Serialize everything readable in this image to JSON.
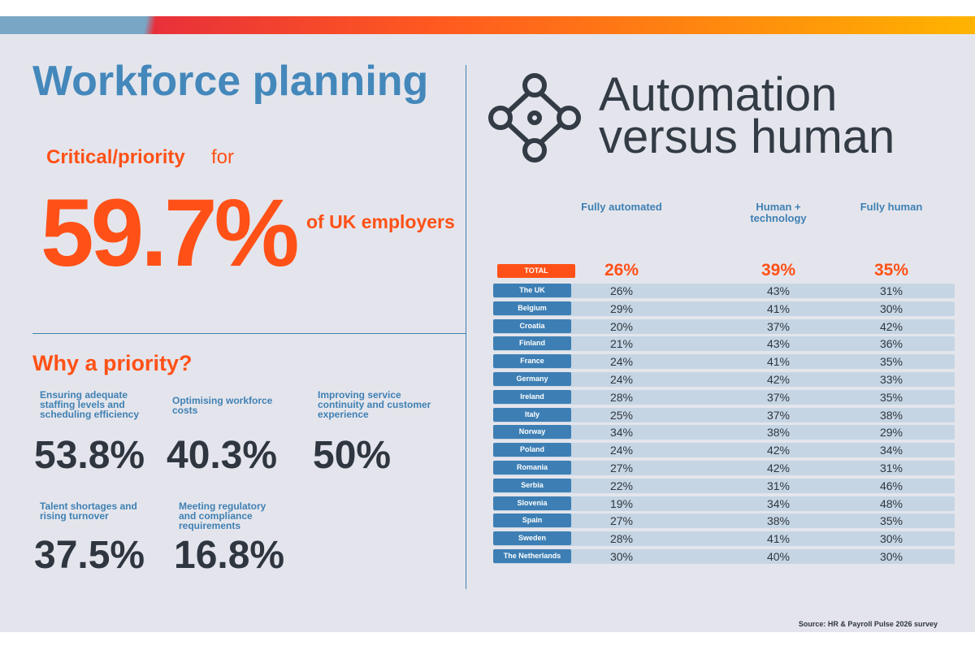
{
  "left": {
    "title": "Workforce planning",
    "highlight": {
      "lead": "Critical/priority",
      "lead_rest": "for",
      "value": "59.7%",
      "suffix": "of UK employers"
    },
    "why_title": "Why a priority?",
    "reasons": [
      {
        "label": "Ensuring adequate staffing levels and scheduling efficiency",
        "value": "53.8%"
      },
      {
        "label": "Optimising workforce costs",
        "value": "40.3%"
      },
      {
        "label": "Improving service continuity and customer experience",
        "value": "50%"
      },
      {
        "label": "Talent shortages and rising turnover",
        "value": "37.5%"
      },
      {
        "label": "Meeting regulatory and compliance requirements",
        "value": "16.8%"
      }
    ]
  },
  "right": {
    "title_lines": [
      "Automation",
      "versus human"
    ],
    "table": {
      "columns": [
        "Fully automated",
        "Human + technology",
        "Fully human"
      ],
      "total": {
        "label": "TOTAL",
        "values": [
          "26%",
          "39%",
          "35%"
        ]
      },
      "rows": [
        {
          "label": "The UK",
          "values": [
            "26%",
            "43%",
            "31%"
          ]
        },
        {
          "label": "Belgium",
          "values": [
            "29%",
            "41%",
            "30%"
          ]
        },
        {
          "label": "Croatia",
          "values": [
            "20%",
            "37%",
            "42%"
          ]
        },
        {
          "label": "Finland",
          "values": [
            "21%",
            "43%",
            "36%"
          ]
        },
        {
          "label": "France",
          "values": [
            "24%",
            "41%",
            "35%"
          ]
        },
        {
          "label": "Germany",
          "values": [
            "24%",
            "42%",
            "33%"
          ]
        },
        {
          "label": "Ireland",
          "values": [
            "28%",
            "37%",
            "35%"
          ]
        },
        {
          "label": "Italy",
          "values": [
            "25%",
            "37%",
            "38%"
          ]
        },
        {
          "label": "Norway",
          "values": [
            "34%",
            "38%",
            "29%"
          ]
        },
        {
          "label": "Poland",
          "values": [
            "24%",
            "42%",
            "34%"
          ]
        },
        {
          "label": "Romania",
          "values": [
            "27%",
            "42%",
            "31%"
          ]
        },
        {
          "label": "Serbia",
          "values": [
            "22%",
            "31%",
            "46%"
          ]
        },
        {
          "label": "Slovenia",
          "values": [
            "19%",
            "34%",
            "48%"
          ]
        },
        {
          "label": "Spain",
          "values": [
            "27%",
            "38%",
            "35%"
          ]
        },
        {
          "label": "Sweden",
          "values": [
            "28%",
            "41%",
            "30%"
          ]
        },
        {
          "label": "The Netherlands",
          "values": [
            "30%",
            "40%",
            "30%"
          ]
        }
      ]
    }
  },
  "source": "Source: HR & Payroll Pulse 2026 survey"
}
